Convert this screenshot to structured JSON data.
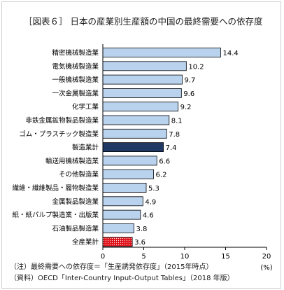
{
  "chart_data": {
    "type": "bar",
    "orientation": "horizontal",
    "title": "［図表６］ 日本の産業別生産額の中国の最終需要への依存度",
    "categories": [
      "精密機械製造業",
      "電気機械製造業",
      "一般機械製造業",
      "一次金属製造業",
      "化学工業",
      "非鉄金属鉱物製品製造業",
      "ゴム・プラスチック製造業",
      "製造業計",
      "輸送用機械製造業",
      "その他製造業",
      "繊維・繊維製品・履物製造業",
      "金属製品製造業",
      "紙・紙パルプ製造業・出版業",
      "石油製品製造業",
      "全産業計"
    ],
    "values": [
      14.4,
      10.2,
      9.7,
      9.6,
      9.2,
      8.1,
      7.8,
      7.4,
      6.6,
      6.2,
      5.3,
      4.9,
      4.6,
      3.8,
      3.6
    ],
    "value_labels": [
      "14.4",
      "10.2",
      "9.7",
      "9.6",
      "9.2",
      "8.1",
      "7.8",
      "7.4",
      "6.6",
      "6.2",
      "5.3",
      "4.9",
      "4.6",
      "3.8",
      "3.6"
    ],
    "xlim": [
      0,
      20
    ],
    "xticks": [
      "0",
      "5",
      "10",
      "15",
      "20"
    ],
    "unit": "(%)",
    "grid": false,
    "colors": {
      "default": "#b9d3ef",
      "highlight_manufacturing_total": "#203864",
      "highlight_all_industries": "#e0141c",
      "edge": "#000000"
    },
    "bar_styles": [
      "default",
      "default",
      "default",
      "default",
      "default",
      "default",
      "default",
      "highlight_manufacturing_total",
      "default",
      "default",
      "default",
      "default",
      "default",
      "default",
      "highlight_all_industries"
    ]
  },
  "notes": {
    "note": "（注）最終需要への依存度＝「生産誘発依存度」（2015年時点）",
    "source": "（資料）OECD「Inter-Country Input-Output Tables」（2018 年版）"
  }
}
